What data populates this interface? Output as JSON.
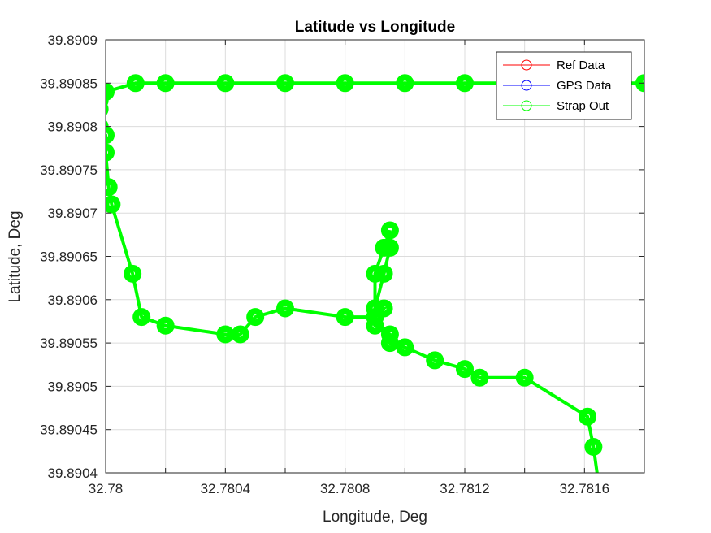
{
  "chart_data": {
    "type": "line",
    "title": "Latitude vs Longitude",
    "xlabel": "Longitude, Deg",
    "ylabel": "Latitude, Deg",
    "xlim": [
      32.78,
      32.7818
    ],
    "ylim": [
      39.8904,
      39.8909
    ],
    "xticks": [
      "32.78",
      "32.7804",
      "32.7808",
      "32.7812",
      "32.7816"
    ],
    "xtick_values": [
      32.78,
      32.7804,
      32.7808,
      32.7812,
      32.7816
    ],
    "yticks": [
      "39.8904",
      "39.89045",
      "39.8905",
      "39.89055",
      "39.8906",
      "39.89065",
      "39.8907",
      "39.89075",
      "39.8908",
      "39.89085",
      "39.8909"
    ],
    "ytick_values": [
      39.8904,
      39.89045,
      39.8905,
      39.89055,
      39.8906,
      39.89065,
      39.8907,
      39.89075,
      39.8908,
      39.89085,
      39.8909
    ],
    "grid": true,
    "legend_position": "top-right",
    "colors": {
      "ref": "#ff0000",
      "gps": "#0000ff",
      "strap": "#00ff00"
    },
    "series": [
      {
        "name": "Ref Data",
        "x": [
          32.78165,
          32.78163,
          32.78161,
          32.7814,
          32.78125,
          32.7812,
          32.7811,
          32.781,
          32.78095,
          32.78095,
          32.7809,
          32.7809,
          32.78093,
          32.78095,
          32.78095,
          32.78093,
          32.7809,
          32.7809,
          32.78093,
          32.7809,
          32.7808,
          32.7806,
          32.7805,
          32.78045,
          32.7804,
          32.7802,
          32.78012,
          32.78009,
          32.78002,
          32.78001,
          32.78,
          32.78,
          32.77998,
          32.77998,
          32.77998,
          32.77998,
          32.78,
          32.7801,
          32.7802,
          32.7804,
          32.7806,
          32.7808,
          32.781,
          32.7812,
          32.7814,
          32.7816,
          32.7817,
          32.7818
        ],
        "y": [
          39.89038,
          39.89043,
          39.890465,
          39.89051,
          39.89051,
          39.89052,
          39.89053,
          39.890545,
          39.89055,
          39.89056,
          39.89057,
          39.89059,
          39.89063,
          39.89066,
          39.89068,
          39.89066,
          39.89063,
          39.89059,
          39.89059,
          39.89058,
          39.89058,
          39.89059,
          39.89058,
          39.89056,
          39.89056,
          39.89057,
          39.89058,
          39.89063,
          39.89071,
          39.89073,
          39.89077,
          39.89079,
          39.8908,
          39.89082,
          39.89083,
          39.89084,
          39.89084,
          39.89085,
          39.89085,
          39.89085,
          39.89085,
          39.89085,
          39.89085,
          39.89085,
          39.89085,
          39.89085,
          39.89085,
          39.89085
        ]
      },
      {
        "name": "GPS Data",
        "x": [
          32.78165,
          32.78163,
          32.78161,
          32.7814,
          32.78125,
          32.7812,
          32.7811,
          32.781,
          32.78095,
          32.78095,
          32.7809,
          32.7809,
          32.78093,
          32.78095,
          32.78095,
          32.78093,
          32.7809,
          32.7809,
          32.78093,
          32.7809,
          32.7808,
          32.7806,
          32.7805,
          32.78045,
          32.7804,
          32.7802,
          32.78012,
          32.78009,
          32.78002,
          32.78001,
          32.78,
          32.78,
          32.77998,
          32.77998,
          32.77998,
          32.77998,
          32.78,
          32.7801,
          32.7802,
          32.7804,
          32.7806,
          32.7808,
          32.781,
          32.7812,
          32.7814,
          32.7816,
          32.7817,
          32.7818
        ],
        "y": [
          39.89038,
          39.89043,
          39.890465,
          39.89051,
          39.89051,
          39.89052,
          39.89053,
          39.890545,
          39.89055,
          39.89056,
          39.89057,
          39.89059,
          39.89063,
          39.89066,
          39.89068,
          39.89066,
          39.89063,
          39.89059,
          39.89059,
          39.89058,
          39.89058,
          39.89059,
          39.89058,
          39.89056,
          39.89056,
          39.89057,
          39.89058,
          39.89063,
          39.89071,
          39.89073,
          39.89077,
          39.89079,
          39.8908,
          39.89082,
          39.89083,
          39.89084,
          39.89084,
          39.89085,
          39.89085,
          39.89085,
          39.89085,
          39.89085,
          39.89085,
          39.89085,
          39.89085,
          39.89085,
          39.89085,
          39.89085
        ]
      },
      {
        "name": "Strap Out",
        "x": [
          32.78165,
          32.78163,
          32.78161,
          32.7814,
          32.78125,
          32.7812,
          32.7811,
          32.781,
          32.78095,
          32.78095,
          32.7809,
          32.7809,
          32.78093,
          32.78095,
          32.78095,
          32.78093,
          32.7809,
          32.7809,
          32.78093,
          32.7809,
          32.7808,
          32.7806,
          32.7805,
          32.78045,
          32.7804,
          32.7802,
          32.78012,
          32.78009,
          32.78002,
          32.78001,
          32.78,
          32.78,
          32.77998,
          32.77998,
          32.77998,
          32.77998,
          32.78,
          32.7801,
          32.7802,
          32.7804,
          32.7806,
          32.7808,
          32.781,
          32.7812,
          32.7814,
          32.7816,
          32.7817,
          32.7818
        ],
        "y": [
          39.89038,
          39.89043,
          39.890465,
          39.89051,
          39.89051,
          39.89052,
          39.89053,
          39.890545,
          39.89055,
          39.89056,
          39.89057,
          39.89059,
          39.89063,
          39.89066,
          39.89068,
          39.89066,
          39.89063,
          39.89059,
          39.89059,
          39.89058,
          39.89058,
          39.89059,
          39.89058,
          39.89056,
          39.89056,
          39.89057,
          39.89058,
          39.89063,
          39.89071,
          39.89073,
          39.89077,
          39.89079,
          39.8908,
          39.89082,
          39.89083,
          39.89084,
          39.89084,
          39.89085,
          39.89085,
          39.89085,
          39.89085,
          39.89085,
          39.89085,
          39.89085,
          39.89085,
          39.89085,
          39.89085,
          39.89085
        ]
      }
    ]
  }
}
